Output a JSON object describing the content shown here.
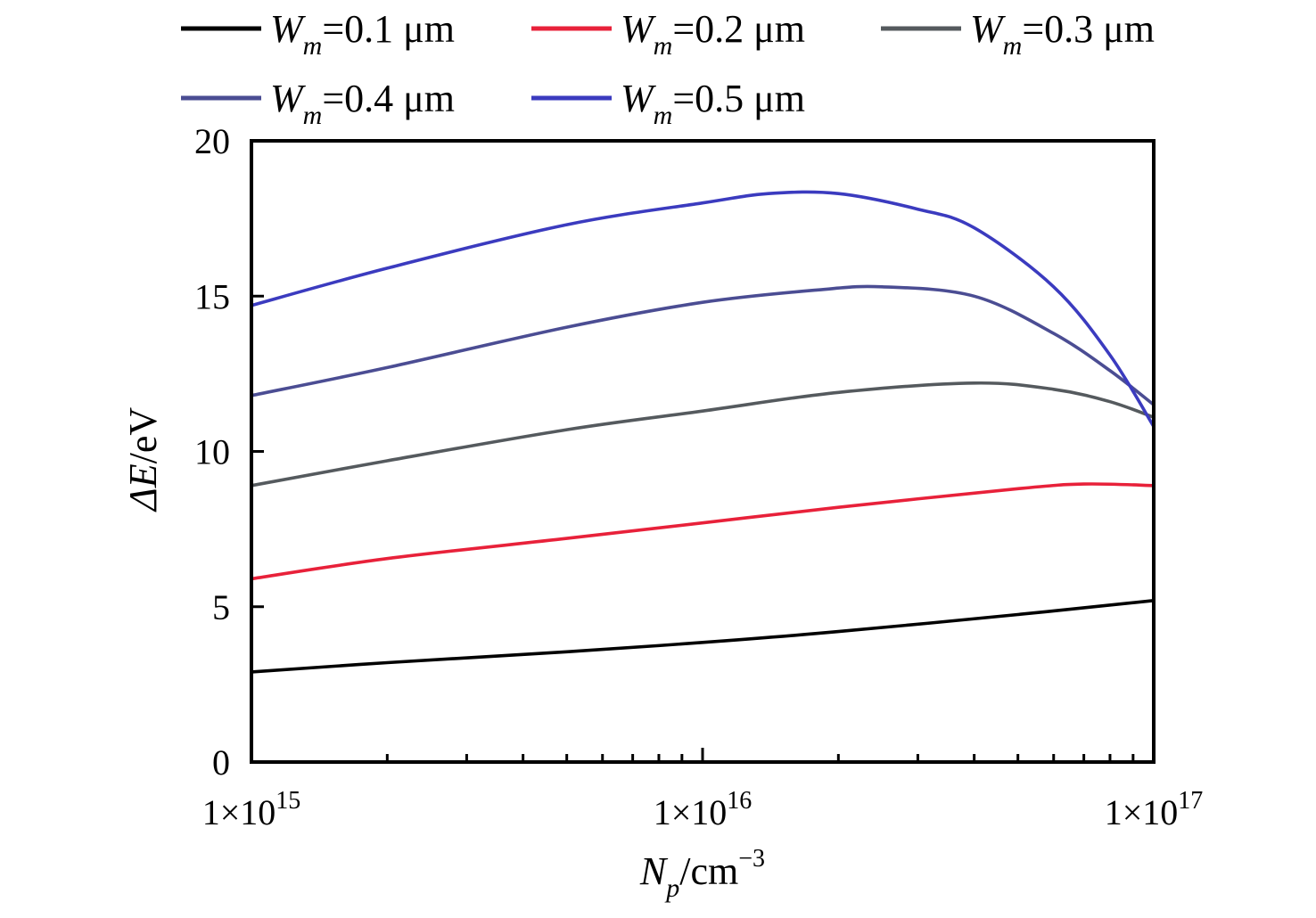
{
  "chart_data": {
    "type": "line",
    "x_scale": "log",
    "xlim": [
      1000000000000000.0,
      1e+17
    ],
    "ylim": [
      0,
      20
    ],
    "x_ticks": [
      {
        "value": 1000000000000000.0,
        "mantissa": "1×10",
        "exp": "15"
      },
      {
        "value": 1e+16,
        "mantissa": "1×10",
        "exp": "16"
      },
      {
        "value": 1e+17,
        "mantissa": "1×10",
        "exp": "17"
      }
    ],
    "y_ticks": [
      {
        "value": 0,
        "label": "0"
      },
      {
        "value": 5,
        "label": "5"
      },
      {
        "value": 10,
        "label": "10"
      },
      {
        "value": 15,
        "label": "15"
      },
      {
        "value": 20,
        "label": "20"
      }
    ],
    "xlabel": {
      "main": "N",
      "sub": "p",
      "unit": "/cm",
      "sup": "−3"
    },
    "ylabel": {
      "main": "ΔE",
      "unit": "/eV"
    },
    "legend_position": "top",
    "series": [
      {
        "name": "W",
        "sub": "m",
        "value_text": "=0.1 μm",
        "color": "#000000",
        "x": [
          1000000000000000.0,
          2000000000000000.0,
          5000000000000000.0,
          1e+16,
          2e+16,
          5e+16,
          1e+17
        ],
        "y": [
          2.9,
          3.2,
          3.55,
          3.85,
          4.2,
          4.75,
          5.2
        ]
      },
      {
        "name": "W",
        "sub": "m",
        "value_text": "=0.2 μm",
        "color": "#e8213a",
        "x": [
          1000000000000000.0,
          2000000000000000.0,
          5000000000000000.0,
          1e+16,
          2e+16,
          5e+16,
          7e+16,
          1e+17
        ],
        "y": [
          5.9,
          6.55,
          7.2,
          7.7,
          8.2,
          8.8,
          8.95,
          8.9
        ]
      },
      {
        "name": "W",
        "sub": "m",
        "value_text": "=0.3 μm",
        "color": "#555a5e",
        "x": [
          1000000000000000.0,
          2000000000000000.0,
          5000000000000000.0,
          1e+16,
          2e+16,
          4e+16,
          6e+16,
          8e+16,
          1e+17
        ],
        "y": [
          8.9,
          9.7,
          10.7,
          11.3,
          11.9,
          12.2,
          12.0,
          11.6,
          11.1
        ]
      },
      {
        "name": "W",
        "sub": "m",
        "value_text": "=0.4 μm",
        "color": "#4b4d93",
        "x": [
          1000000000000000.0,
          2000000000000000.0,
          5000000000000000.0,
          1e+16,
          1.8e+16,
          2.5e+16,
          4e+16,
          6e+16,
          8e+16,
          1e+17
        ],
        "y": [
          11.8,
          12.7,
          14.0,
          14.8,
          15.2,
          15.3,
          15.0,
          13.8,
          12.6,
          11.5
        ]
      },
      {
        "name": "W",
        "sub": "m",
        "value_text": "=0.5 μm",
        "color": "#3b3bbf",
        "x": [
          1000000000000000.0,
          2000000000000000.0,
          5000000000000000.0,
          1e+16,
          1.4e+16,
          2e+16,
          3e+16,
          4e+16,
          6e+16,
          8e+16,
          1e+17
        ],
        "y": [
          14.7,
          15.9,
          17.3,
          18.0,
          18.3,
          18.3,
          17.8,
          17.2,
          15.3,
          13.1,
          10.8
        ]
      }
    ]
  }
}
